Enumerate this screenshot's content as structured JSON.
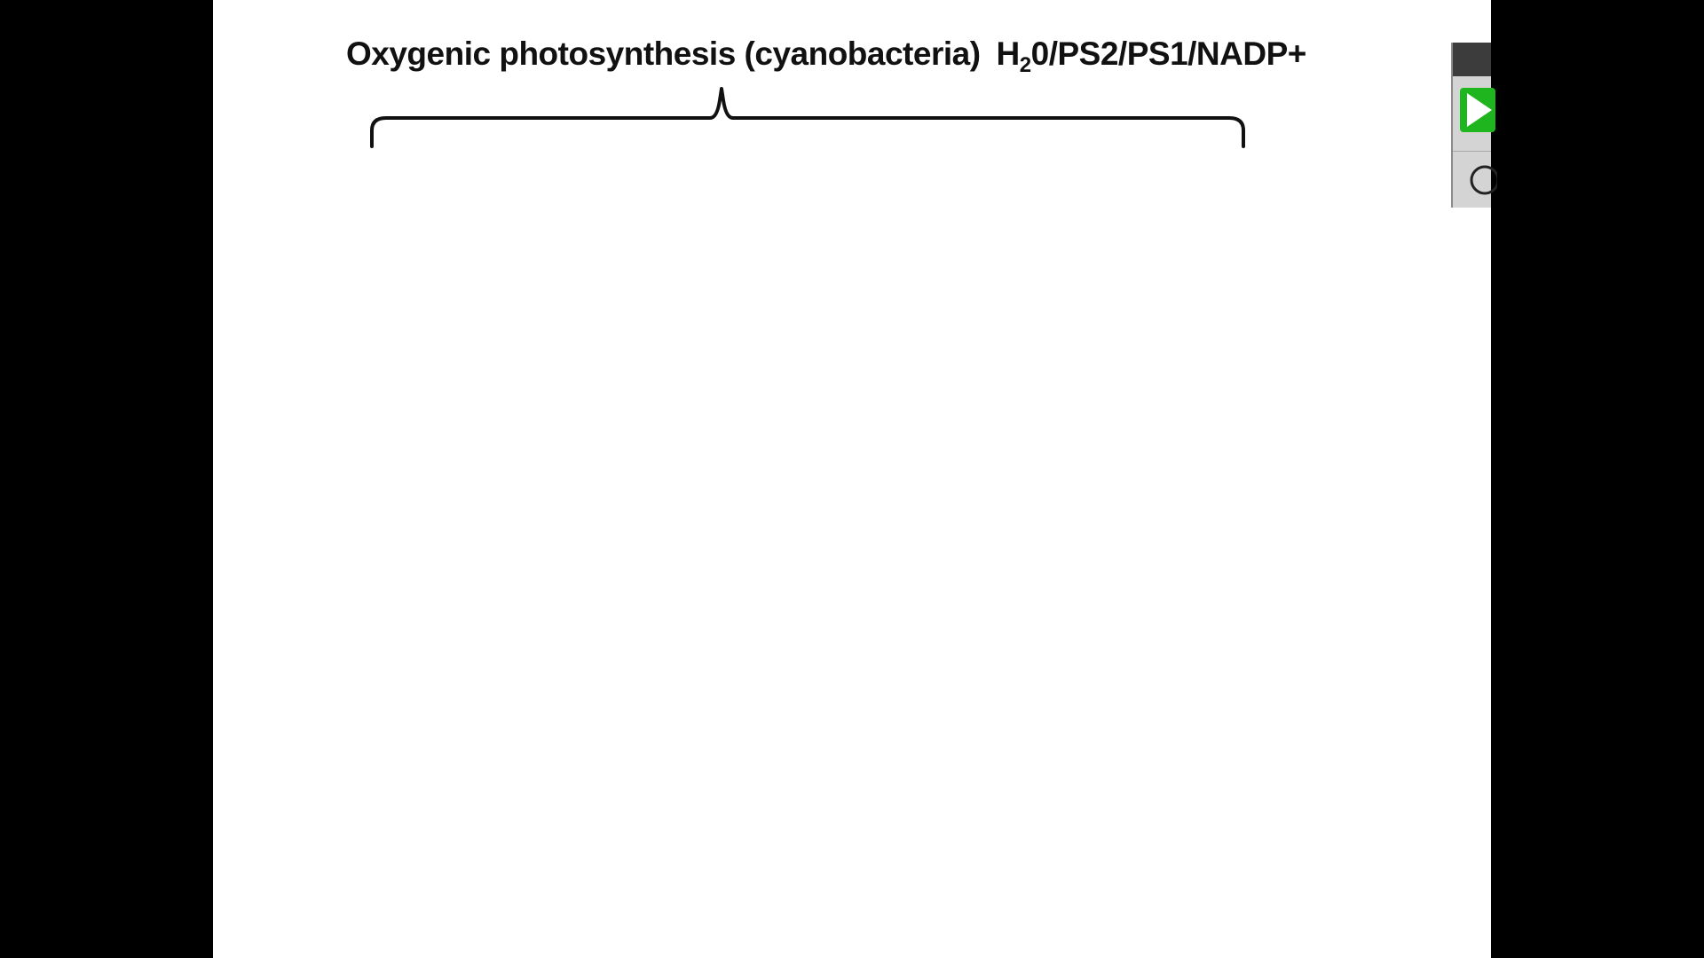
{
  "slide": {
    "title_main": "Oxygenic photosynthesis (cyanobacteria)",
    "formula_prefix": "H",
    "formula_subscript": "2",
    "formula_suffix": "0/PS2/PS1/NADP+"
  },
  "player": {
    "play_icon": "play-icon",
    "record_icon": "circle-icon",
    "accent_color": "#2bd12b"
  },
  "colors": {
    "background": "#000000",
    "slide": "#ffffff",
    "text": "#111111"
  }
}
